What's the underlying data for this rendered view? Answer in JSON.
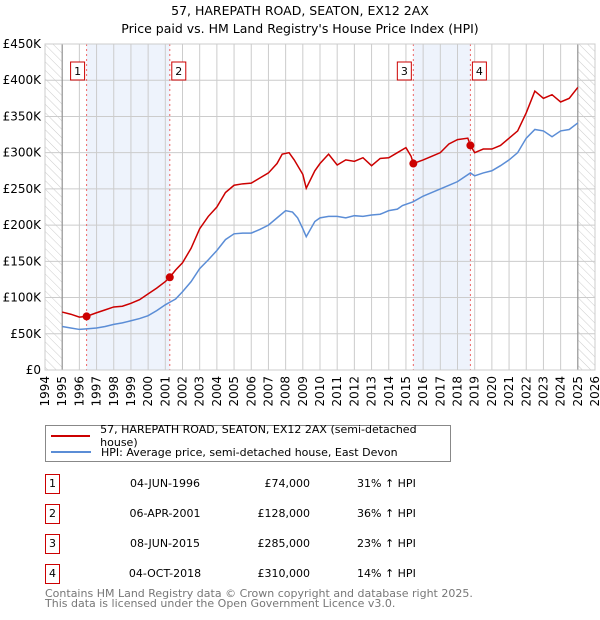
{
  "chart_data": {
    "type": "line",
    "title": "57, HAREPATH ROAD, SEATON, EX12 2AX",
    "subtitle": "Price paid vs. HM Land Registry's House Price Index (HPI)",
    "xlim": [
      1994,
      2026
    ],
    "ylim": [
      0,
      450000
    ],
    "x_ticks": [
      "1994",
      "1995",
      "1996",
      "1997",
      "1998",
      "1999",
      "2000",
      "2001",
      "2002",
      "2003",
      "2004",
      "2005",
      "2006",
      "2007",
      "2008",
      "2009",
      "2010",
      "2011",
      "2012",
      "2013",
      "2014",
      "2015",
      "2016",
      "2017",
      "2018",
      "2019",
      "2020",
      "2021",
      "2022",
      "2023",
      "2024",
      "2025",
      "2026"
    ],
    "y_ticks": [
      {
        "v": 0,
        "label": "£0"
      },
      {
        "v": 50000,
        "label": "£50K"
      },
      {
        "v": 100000,
        "label": "£100K"
      },
      {
        "v": 150000,
        "label": "£150K"
      },
      {
        "v": 200000,
        "label": "£200K"
      },
      {
        "v": 250000,
        "label": "£250K"
      },
      {
        "v": 300000,
        "label": "£300K"
      },
      {
        "v": 350000,
        "label": "£350K"
      },
      {
        "v": 400000,
        "label": "£400K"
      },
      {
        "v": 450000,
        "label": "£450K"
      }
    ],
    "grid": true,
    "hatched_ranges": [
      [
        1994,
        1995
      ],
      [
        2025,
        2026
      ]
    ],
    "shaded_ranges": [
      [
        1996.42,
        2001.26
      ],
      [
        2015.43,
        2018.75
      ]
    ],
    "series": [
      {
        "name": "57, HAREPATH ROAD, SEATON, EX12 2AX (semi-detached house)",
        "color": "#cc0000",
        "x": [
          1995,
          1995.5,
          1996,
          1996.42,
          1997,
          1997.5,
          1998,
          1998.5,
          1999,
          1999.5,
          2000,
          2000.5,
          2001,
          2001.26,
          2001.6,
          2002,
          2002.5,
          2003,
          2003.5,
          2004,
          2004.5,
          2005,
          2005.5,
          2006,
          2006.5,
          2007,
          2007.5,
          2007.8,
          2008.2,
          2008.5,
          2009,
          2009.2,
          2009.7,
          2010,
          2010.5,
          2011,
          2011.5,
          2012,
          2012.5,
          2013,
          2013.5,
          2014,
          2014.5,
          2015,
          2015.3,
          2015.43,
          2016,
          2016.5,
          2017,
          2017.5,
          2018,
          2018.6,
          2018.75,
          2019,
          2019.5,
          2020,
          2020.5,
          2021,
          2021.5,
          2022,
          2022.5,
          2023,
          2023.5,
          2024,
          2024.5,
          2025
        ],
        "y": [
          80000,
          77000,
          73000,
          74000,
          79000,
          83000,
          87000,
          88000,
          92000,
          97000,
          105000,
          113000,
          122000,
          128000,
          138000,
          148000,
          168000,
          195000,
          212000,
          225000,
          245000,
          255000,
          257000,
          258000,
          265000,
          272000,
          285000,
          298000,
          300000,
          290000,
          270000,
          251000,
          275000,
          285000,
          298000,
          283000,
          290000,
          288000,
          293000,
          282000,
          292000,
          293000,
          300000,
          307000,
          295000,
          285000,
          290000,
          295000,
          300000,
          312000,
          318000,
          320000,
          310000,
          300000,
          305000,
          305000,
          310000,
          320000,
          330000,
          355000,
          385000,
          375000,
          380000,
          370000,
          375000,
          390000
        ]
      },
      {
        "name": "HPI: Average price, semi-detached house, East Devon",
        "color": "#5b8dd6",
        "x": [
          1995,
          1995.5,
          1996,
          1996.5,
          1997,
          1997.5,
          1998,
          1998.5,
          1999,
          1999.5,
          2000,
          2000.5,
          2001,
          2001.3,
          2001.6,
          2002,
          2002.5,
          2003,
          2003.5,
          2004,
          2004.5,
          2005,
          2005.5,
          2006,
          2006.5,
          2007,
          2007.5,
          2008,
          2008.4,
          2008.7,
          2009,
          2009.2,
          2009.7,
          2010,
          2010.5,
          2011,
          2011.5,
          2012,
          2012.5,
          2013,
          2013.5,
          2014,
          2014.5,
          2014.8,
          2015.4,
          2016,
          2016.5,
          2017,
          2017.5,
          2018,
          2018.75,
          2019,
          2019.5,
          2020,
          2020.5,
          2021,
          2021.5,
          2022,
          2022.5,
          2023,
          2023.5,
          2024,
          2024.5,
          2025
        ],
        "y": [
          60000,
          58000,
          56000,
          57000,
          58000,
          60000,
          63000,
          65000,
          68000,
          71000,
          75000,
          82000,
          90000,
          94000,
          98000,
          108000,
          122000,
          140000,
          152000,
          165000,
          180000,
          188000,
          189000,
          189000,
          194000,
          200000,
          210000,
          220000,
          218000,
          210000,
          195000,
          184000,
          205000,
          210000,
          212000,
          212000,
          210000,
          213000,
          212000,
          214000,
          215000,
          220000,
          222000,
          227000,
          232000,
          240000,
          245000,
          250000,
          255000,
          260000,
          272000,
          268000,
          272000,
          275000,
          282000,
          290000,
          300000,
          320000,
          332000,
          330000,
          322000,
          330000,
          332000,
          341000
        ]
      }
    ],
    "sales": [
      {
        "n": "1",
        "x": 1996.42,
        "price": 74000,
        "date": "04-JUN-1996",
        "price_label": "£74,000",
        "hpi": "31% ↑ HPI"
      },
      {
        "n": "2",
        "x": 2001.26,
        "price": 128000,
        "date": "06-APR-2001",
        "price_label": "£128,000",
        "hpi": "36% ↑ HPI"
      },
      {
        "n": "3",
        "x": 2015.43,
        "price": 285000,
        "date": "08-JUN-2015",
        "price_label": "£285,000",
        "hpi": "23% ↑ HPI"
      },
      {
        "n": "4",
        "x": 2018.75,
        "price": 310000,
        "date": "04-OCT-2018",
        "price_label": "£310,000",
        "hpi": "14% ↑ HPI"
      }
    ]
  },
  "legend": {
    "red": "57, HAREPATH ROAD, SEATON, EX12 2AX (semi-detached house)",
    "blue": "HPI: Average price, semi-detached house, East Devon"
  },
  "footer": {
    "line1": "Contains HM Land Registry data © Crown copyright and database right 2025.",
    "line2": "This data is licensed under the Open Government Licence v3.0."
  }
}
